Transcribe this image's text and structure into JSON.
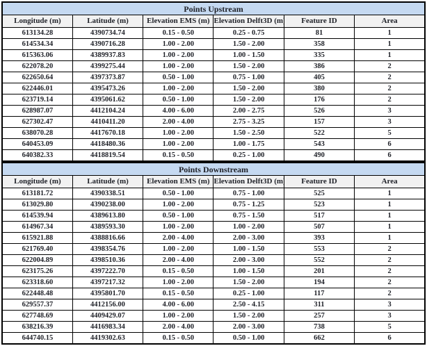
{
  "colors": {
    "title_bg": "#c5d9f1",
    "header_bg": "#f1f1f1",
    "border": "#000000",
    "text": "#1f2128",
    "row_bg": "#ffffff"
  },
  "tables": [
    {
      "title": "Points Upstream",
      "columns": [
        "Longitude (m)",
        "Latitude (m)",
        "Elevation EMS (m)",
        "Elevation Delft3D (m)",
        "Feature ID",
        "Area"
      ],
      "rows": [
        [
          "613134.28",
          "4390734.74",
          "0.15 - 0.50",
          "0.25 - 0.75",
          "81",
          "1"
        ],
        [
          "614534.34",
          "4390716.28",
          "1.00 - 2.00",
          "1.50 - 2.00",
          "358",
          "1"
        ],
        [
          "615363.06",
          "4389937.83",
          "1.00 - 2.00",
          "1.00 - 1.50",
          "335",
          "1"
        ],
        [
          "622078.20",
          "4399275.44",
          "1.00 - 2.00",
          "1.50 - 2.00",
          "386",
          "2"
        ],
        [
          "622650.64",
          "4397373.87",
          "0.50 - 1.00",
          "0.75 - 1.00",
          "405",
          "2"
        ],
        [
          "622446.01",
          "4395473.26",
          "1.00 - 2.00",
          "1.50 - 2.00",
          "380",
          "2"
        ],
        [
          "623719.14",
          "4395061.62",
          "0.50 - 1.00",
          "1.50 - 2.00",
          "176",
          "2"
        ],
        [
          "628987.07",
          "4412104.24",
          "4.00 - 6.00",
          "2.00 - 2.75",
          "526",
          "3"
        ],
        [
          "627302.47",
          "4410411.20",
          "2.00 - 4.00",
          "2.75 - 3.25",
          "157",
          "3"
        ],
        [
          "638070.28",
          "4417670.18",
          "1.00 - 2.00",
          "1.50 - 2.50",
          "522",
          "5"
        ],
        [
          "640453.09",
          "4418480.36",
          "1.00 - 2.00",
          "1.00 - 1.75",
          "543",
          "6"
        ],
        [
          "640382.33",
          "4418819.54",
          "0.15 - 0.50",
          "0.25 - 1.00",
          "490",
          "6"
        ]
      ]
    },
    {
      "title": "Points Downstream",
      "columns": [
        "Longitude (m)",
        "Latitude (m)",
        "Elevation EMS (m)",
        "Elevation Delft3D (m)",
        "Feature ID",
        "Area"
      ],
      "rows": [
        [
          "613181.72",
          "4390338.51",
          "0.50 - 1.00",
          "0.75 - 1.00",
          "525",
          "1"
        ],
        [
          "613029.80",
          "4390238.00",
          "1.00 - 2.00",
          "0.75 - 1.25",
          "523",
          "1"
        ],
        [
          "614539.94",
          "4389613.80",
          "0.50 - 1.00",
          "0.75 - 1.50",
          "517",
          "1"
        ],
        [
          "614967.34",
          "4389593.30",
          "1.00 - 2.00",
          "1.00 - 2.00",
          "507",
          "1"
        ],
        [
          "615921.88",
          "4388816.66",
          "2.00 - 4.00",
          "2.00 - 3.00",
          "393",
          "1"
        ],
        [
          "621769.40",
          "4398354.76",
          "1.00 - 2.00",
          "1.00 - 1.50",
          "553",
          "2"
        ],
        [
          "622004.89",
          "4398510.36",
          "2.00 - 4.00",
          "2.00 - 3.00",
          "552",
          "2"
        ],
        [
          "623175.26",
          "4397222.70",
          "0.15 - 0.50",
          "1.00 - 1.50",
          "201",
          "2"
        ],
        [
          "623318.60",
          "4397217.32",
          "1.00 - 2.00",
          "1.50 - 2.00",
          "194",
          "2"
        ],
        [
          "622448.48",
          "4395801.70",
          "0.15 - 0.50",
          "0.25 - 1.00",
          "117",
          "2"
        ],
        [
          "629557.37",
          "4412156.00",
          "4.00 - 6.00",
          "2.50 - 4.15",
          "311",
          "3"
        ],
        [
          "627748.69",
          "4409429.07",
          "1.00 - 2.00",
          "1.50 - 2.00",
          "257",
          "3"
        ],
        [
          "638216.39",
          "4416983.34",
          "2.00 - 4.00",
          "2.00 - 3.00",
          "738",
          "5"
        ],
        [
          "644740.15",
          "4419302.63",
          "0.15 - 0.50",
          "0.50 - 1.00",
          "662",
          "6"
        ]
      ]
    }
  ]
}
